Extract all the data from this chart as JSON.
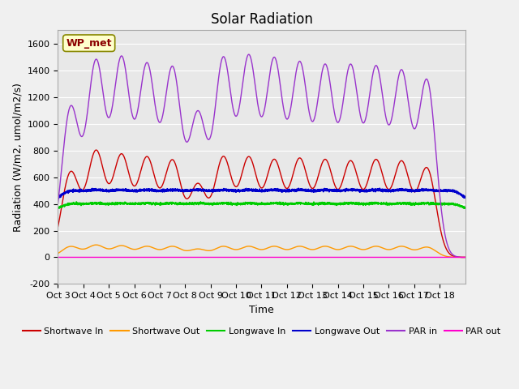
{
  "title": "Solar Radiation",
  "xlabel": "Time",
  "ylabel": "Radiation (W/m2, umol/m2/s)",
  "ylim": [
    -200,
    1700
  ],
  "plot_bg_color": "#e8e8e8",
  "fig_bg_color": "#f0f0f0",
  "legend_label": "WP_met",
  "series": {
    "shortwave_in": {
      "label": "Shortwave In",
      "color": "#cc0000"
    },
    "shortwave_out": {
      "label": "Shortwave Out",
      "color": "#ff9900"
    },
    "longwave_in": {
      "label": "Longwave In",
      "color": "#00cc00"
    },
    "longwave_out": {
      "label": "Longwave Out",
      "color": "#0000cc"
    },
    "par_in": {
      "label": "PAR in",
      "color": "#9933cc"
    },
    "par_out": {
      "label": "PAR out",
      "color": "#ff00cc"
    }
  },
  "xtick_labels": [
    "Oct 3",
    "Oct 4",
    "Oct 5",
    "Oct 6",
    "Oct 7",
    "Oct 8",
    "Oct 9",
    "Oct 10",
    "Oct 11",
    "Oct 12",
    "Oct 13",
    "Oct 14",
    "Oct 15",
    "Oct 16",
    "Oct 17",
    "Oct 18"
  ],
  "ytick_labels": [
    -200,
    0,
    200,
    400,
    600,
    800,
    1000,
    1200,
    1400,
    1600
  ],
  "grid_color": "#ffffff",
  "num_days": 16,
  "points_per_day": 288,
  "sw_in_peaks": [
    630,
    780,
    750,
    730,
    710,
    530,
    735,
    730,
    710,
    720,
    710,
    700,
    710,
    700,
    660,
    0
  ],
  "sw_out_peaks": [
    80,
    90,
    85,
    80,
    80,
    60,
    80,
    80,
    80,
    80,
    80,
    80,
    80,
    80,
    75,
    0
  ],
  "par_in_peaks": [
    1110,
    1440,
    1460,
    1410,
    1390,
    1050,
    1460,
    1470,
    1450,
    1420,
    1400,
    1400,
    1390,
    1360,
    1310,
    0
  ],
  "lw_in_base": 340,
  "lw_in_peak_add": 55,
  "lw_out_base": 400,
  "lw_out_peak_add": 90
}
